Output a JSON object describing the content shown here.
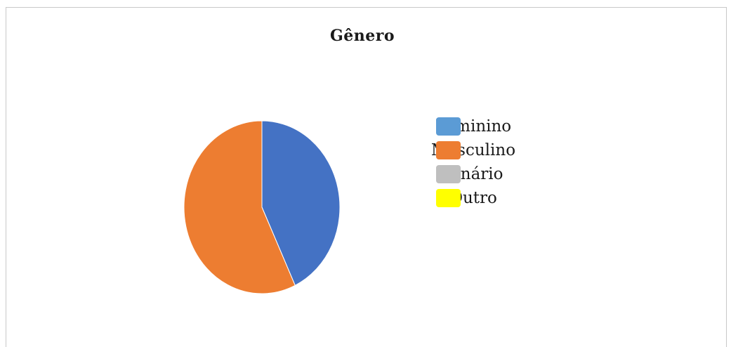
{
  "chart_data": {
    "type": "pie",
    "title": "Gênero",
    "categories": [
      "Feminino",
      "Masculino",
      "Binário",
      "Outro"
    ],
    "values": [
      43,
      57,
      0,
      0
    ],
    "slice_colors": [
      "#4472C4",
      "#ED7D31",
      "#A5A5A5",
      "#FFC000"
    ],
    "legend": {
      "placement": "right",
      "entries": [
        {
          "label": "Feminino",
          "color": "#5B9BD5"
        },
        {
          "label": "Masculino",
          "color": "#ED7D31"
        },
        {
          "label": "Binário",
          "color": "#BFBFBF"
        },
        {
          "label": "Outro",
          "color": "#FFFF00"
        }
      ]
    }
  }
}
